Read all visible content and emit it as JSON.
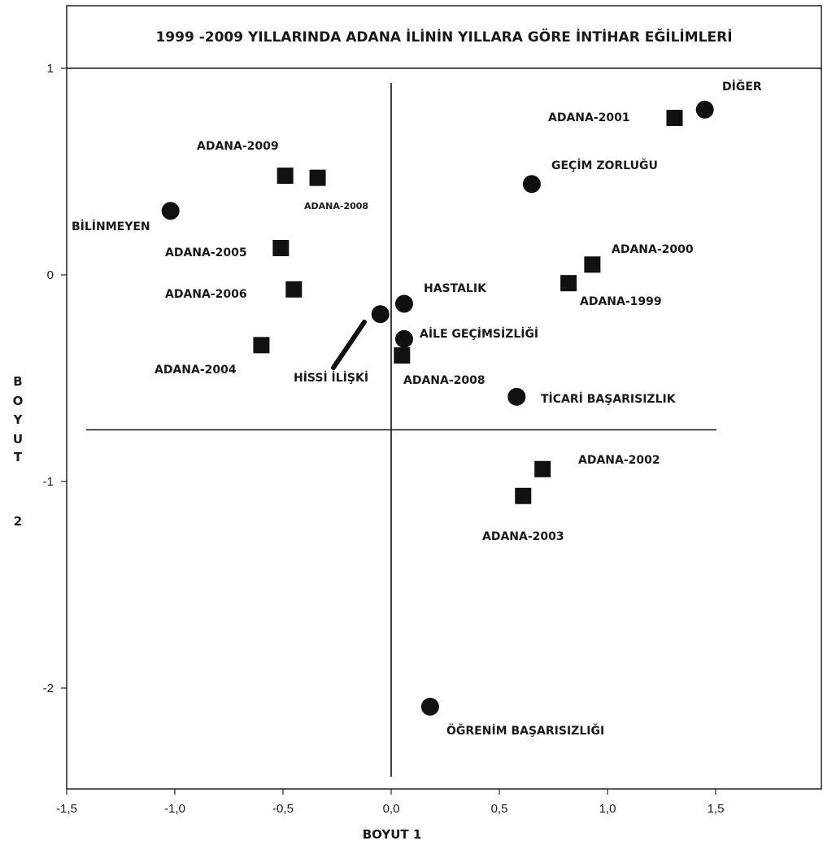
{
  "chart_data": {
    "type": "scatter",
    "title": "1999 -2009 YILLARINDA ADANA İLİNİN YILLARA GÖRE İNTİHAR EĞİLİMLERİ",
    "xlabel": "BOYUT 1",
    "ylabel": "BOYUT 2",
    "ylabel_letters": [
      "B",
      "O",
      "Y",
      "U",
      "T",
      "2"
    ],
    "xlim": [
      -1.5,
      2.0
    ],
    "ylim": [
      -2.5,
      1.0
    ],
    "x_ticks": [
      {
        "value": -1.5,
        "label": "-1,5"
      },
      {
        "value": -1.0,
        "label": "-1,0"
      },
      {
        "value": -0.5,
        "label": "-0,5"
      },
      {
        "value": 0.0,
        "label": "0,0"
      },
      {
        "value": 0.5,
        "label": "0,5"
      },
      {
        "value": 1.0,
        "label": "1,0"
      },
      {
        "value": 1.5,
        "label": "1,5"
      }
    ],
    "y_ticks": [
      {
        "value": 1,
        "label": "1"
      },
      {
        "value": 0,
        "label": "0"
      },
      {
        "value": -1,
        "label": "-1"
      },
      {
        "value": -2,
        "label": "-2"
      }
    ],
    "reference_lines": {
      "vertical_x": 0.0,
      "horizontal_y": -0.75
    },
    "grid": false,
    "series": [
      {
        "marker": "circle",
        "points": [
          {
            "label": "DİĞER",
            "x": 1.45,
            "y": 0.8
          },
          {
            "label": "GEÇİM ZORLUĞU",
            "x": 0.65,
            "y": 0.44
          },
          {
            "label": "BİLİNMEYEN",
            "x": -1.02,
            "y": 0.31
          },
          {
            "label": "HASTALIK",
            "x": 0.06,
            "y": -0.14
          },
          {
            "label": "HİSSİ İLİŞKİ",
            "x": -0.05,
            "y": -0.19
          },
          {
            "label": "AİLE GEÇİMSİZLİĞİ",
            "x": 0.06,
            "y": -0.31
          },
          {
            "label": "TİCARİ BAŞARISIZLIK",
            "x": 0.58,
            "y": -0.59
          },
          {
            "label": "ÖĞRENİM BAŞARISIZLIĞI",
            "x": 0.18,
            "y": -2.09
          }
        ]
      },
      {
        "marker": "square",
        "points": [
          {
            "label": "ADANA-2001",
            "x": 1.31,
            "y": 0.76
          },
          {
            "label": "ADANA-2009",
            "x": -0.49,
            "y": 0.48
          },
          {
            "label": "ADANA-2008",
            "x": -0.34,
            "y": 0.47
          },
          {
            "label": "ADANA-2005",
            "x": -0.51,
            "y": 0.13
          },
          {
            "label": "ADANA-2000",
            "x": 0.93,
            "y": 0.05
          },
          {
            "label": "ADANA-1999",
            "x": 0.82,
            "y": -0.04
          },
          {
            "label": "ADANA-2006",
            "x": -0.45,
            "y": -0.07
          },
          {
            "label": "ADANA-2004",
            "x": -0.6,
            "y": -0.34
          },
          {
            "label": "ADANA-2008",
            "x": 0.05,
            "y": -0.39
          },
          {
            "label": "ADANA-2002",
            "x": 0.7,
            "y": -0.94
          },
          {
            "label": "ADANA-2003",
            "x": 0.61,
            "y": -1.07
          }
        ]
      }
    ]
  }
}
